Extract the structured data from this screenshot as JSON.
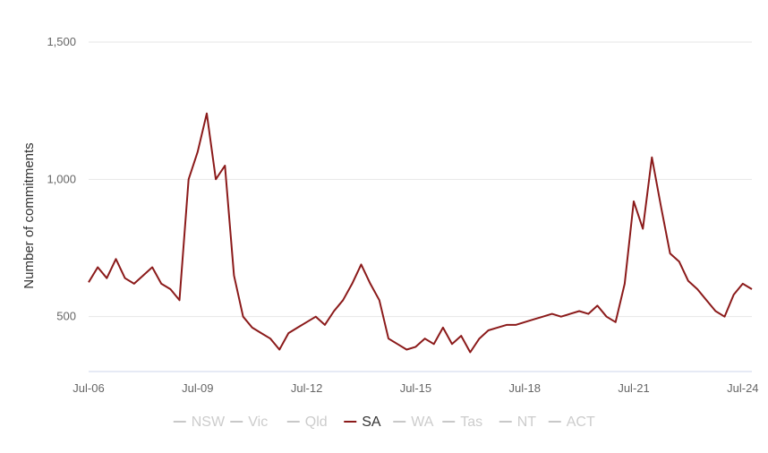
{
  "chart_data": {
    "type": "line",
    "title": "",
    "xlabel": "",
    "ylabel": "Number of commitments",
    "ylim": [
      300,
      1500
    ],
    "yticks": [
      500,
      1000,
      1500
    ],
    "ytick_labels": [
      "500",
      "1,000",
      "1,500"
    ],
    "xlim": [
      "2006-07",
      "2024-10"
    ],
    "xticks": [
      "2006-07",
      "2009-07",
      "2012-07",
      "2015-07",
      "2018-07",
      "2021-07",
      "2024-07"
    ],
    "xtick_labels": [
      "Jul-06",
      "Jul-09",
      "Jul-12",
      "Jul-15",
      "Jul-18",
      "Jul-21",
      "Jul-24"
    ],
    "grid": true,
    "legend_position": "bottom",
    "legend": [
      {
        "name": "NSW",
        "active": false
      },
      {
        "name": "Vic",
        "active": false
      },
      {
        "name": "Qld",
        "active": false
      },
      {
        "name": "SA",
        "active": true
      },
      {
        "name": "WA",
        "active": false
      },
      {
        "name": "Tas",
        "active": false
      },
      {
        "name": "NT",
        "active": false
      },
      {
        "name": "ACT",
        "active": false
      }
    ],
    "colors": {
      "series": "#8b1a1a",
      "inactive": "#c8c8c8",
      "grid": "#e6e6e6",
      "axis": "#ccd6eb"
    },
    "series": [
      {
        "name": "SA",
        "x": [
          "2006-07",
          "2006-10",
          "2007-01",
          "2007-04",
          "2007-07",
          "2007-10",
          "2008-01",
          "2008-04",
          "2008-07",
          "2008-10",
          "2009-01",
          "2009-04",
          "2009-07",
          "2009-10",
          "2010-01",
          "2010-04",
          "2010-07",
          "2010-10",
          "2011-01",
          "2011-04",
          "2011-07",
          "2011-10",
          "2012-01",
          "2012-04",
          "2012-07",
          "2012-10",
          "2013-01",
          "2013-04",
          "2013-07",
          "2013-10",
          "2014-01",
          "2014-04",
          "2014-07",
          "2014-10",
          "2015-01",
          "2015-04",
          "2015-07",
          "2015-10",
          "2016-01",
          "2016-04",
          "2016-07",
          "2016-10",
          "2017-01",
          "2017-04",
          "2017-07",
          "2017-10",
          "2018-01",
          "2018-04",
          "2018-07",
          "2018-10",
          "2019-01",
          "2019-04",
          "2019-07",
          "2019-10",
          "2020-01",
          "2020-04",
          "2020-07",
          "2020-10",
          "2021-01",
          "2021-04",
          "2021-07",
          "2021-10",
          "2022-01",
          "2022-04",
          "2022-07",
          "2022-10",
          "2023-01",
          "2023-04",
          "2023-07",
          "2023-10",
          "2024-01",
          "2024-04",
          "2024-07",
          "2024-10"
        ],
        "values": [
          625,
          680,
          640,
          710,
          640,
          620,
          650,
          680,
          620,
          600,
          560,
          1000,
          1100,
          1240,
          1000,
          1050,
          650,
          500,
          460,
          440,
          420,
          380,
          440,
          460,
          480,
          500,
          470,
          520,
          560,
          620,
          690,
          620,
          560,
          420,
          400,
          380,
          390,
          420,
          400,
          460,
          400,
          430,
          370,
          420,
          450,
          460,
          470,
          470,
          480,
          490,
          500,
          510,
          500,
          510,
          520,
          510,
          540,
          500,
          480,
          620,
          920,
          820,
          1080,
          900,
          730,
          700,
          630,
          600,
          560,
          520,
          500,
          580,
          620,
          600
        ]
      }
    ]
  }
}
